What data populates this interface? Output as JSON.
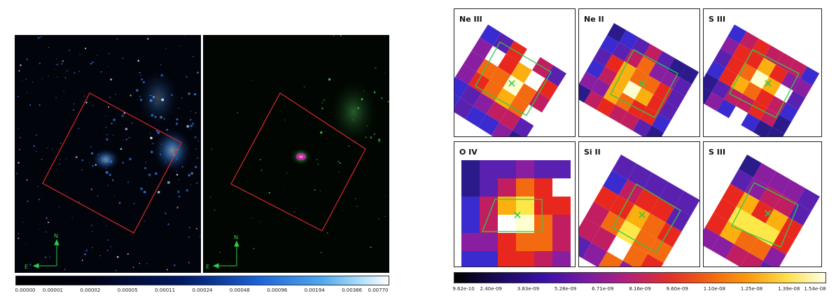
{
  "left_figure": {
    "compass": {
      "north_label": "N",
      "east_label": "E"
    },
    "colorbar": {
      "ticks": [
        "0.00000",
        "0.00001",
        "0.00002",
        "0.00005",
        "0.00011",
        "0.00024",
        "0.00048",
        "0.00096",
        "0.00194",
        "0.00386",
        "0.00770"
      ]
    }
  },
  "right_figure": {
    "maps": [
      {
        "label": "Ne III"
      },
      {
        "label": "Ne II"
      },
      {
        "label": "S III"
      },
      {
        "label": "O IV"
      },
      {
        "label": "Si II"
      },
      {
        "label": "S III"
      }
    ],
    "colorbar": {
      "ticks": [
        "9.62e-10",
        "2.40e-09",
        "3.83e-09",
        "5.28e-09",
        "6.71e-09",
        "8.16e-09",
        "9.60e-09",
        "1.10e-08",
        "1.25e-08",
        "1.39e-08",
        "1.54e-08"
      ]
    }
  },
  "colors": {
    "aperture_box": "#d8282a",
    "slit_box": "#2fc94a",
    "center_marker": "#2fc94a",
    "compass": "#2fc94a"
  }
}
